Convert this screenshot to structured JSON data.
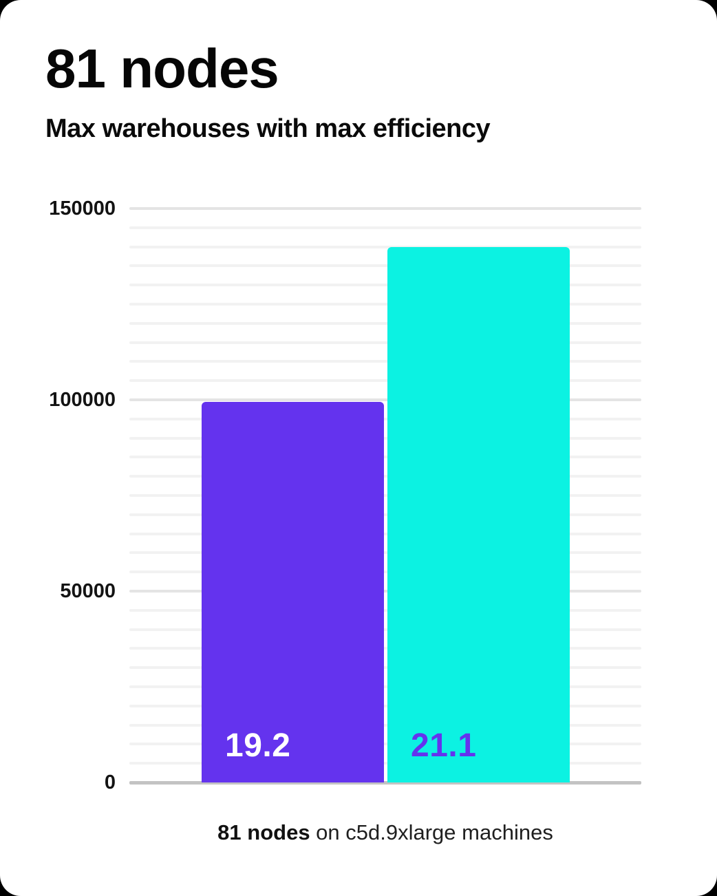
{
  "card": {
    "title": "81 nodes",
    "subtitle": "Max warehouses with max efficiency",
    "caption_bold": "81 nodes",
    "caption_rest": " on c5d.9xlarge machines"
  },
  "colors": {
    "card_background": "#ffffff",
    "purple": "#6433ee",
    "cyan": "#0cf2e2",
    "major_grid": "#e4e4e4",
    "minor_grid": "#f2f2f2",
    "axis_line": "#c3c3c3",
    "text": "#0a0a0a"
  },
  "chart_data": {
    "type": "bar",
    "title": "81 nodes",
    "subtitle": "Max warehouses with max efficiency",
    "caption": "81 nodes on c5d.9xlarge machines",
    "categories": [
      "19.2",
      "21.1"
    ],
    "values": [
      99500,
      140000
    ],
    "bar_labels": [
      "19.2",
      "21.1"
    ],
    "bar_colors": [
      "#6433ee",
      "#0cf2e2"
    ],
    "bar_label_colors": [
      "#ffffff",
      "#6433ee"
    ],
    "xlabel": "",
    "ylabel": "",
    "ylim": [
      0,
      150000
    ],
    "yticks": [
      0,
      50000,
      100000,
      150000
    ],
    "minor_grid_step": 5000,
    "grid": true,
    "legend": false,
    "legend_note": "bar categories are CockroachDB versions shown as labels inside bars"
  }
}
